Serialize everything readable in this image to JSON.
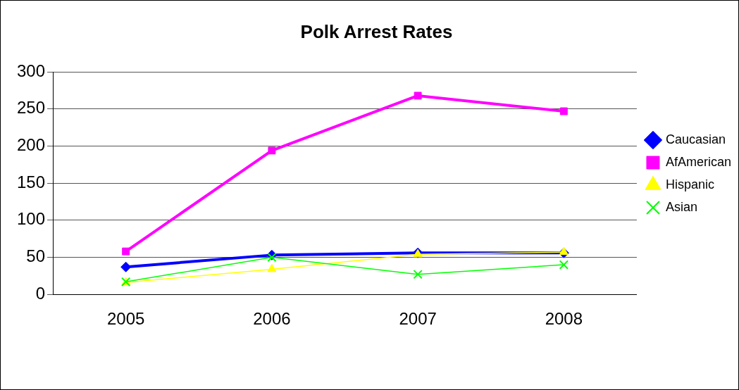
{
  "chart_data": {
    "type": "line",
    "title": "Polk Arrest Rates",
    "categories": [
      "2005",
      "2006",
      "2007",
      "2008"
    ],
    "series": [
      {
        "name": "Caucasian",
        "color": "#0000ff",
        "values": [
          37,
          53,
          56,
          56
        ],
        "marker": "diamond"
      },
      {
        "name": "AfAmerican",
        "color": "#ff00ff",
        "values": [
          58,
          194,
          268,
          247
        ],
        "marker": "square"
      },
      {
        "name": "Hispanic",
        "color": "#ffff00",
        "values": [
          16,
          34,
          54,
          57
        ],
        "marker": "triangle"
      },
      {
        "name": "Asian",
        "color": "#00ff00",
        "values": [
          17,
          50,
          27,
          40
        ],
        "marker": "cross"
      }
    ],
    "ylim": [
      0,
      300
    ],
    "yticks": [
      0,
      50,
      100,
      150,
      200,
      250,
      300
    ],
    "grid": "y",
    "legend": "right"
  }
}
